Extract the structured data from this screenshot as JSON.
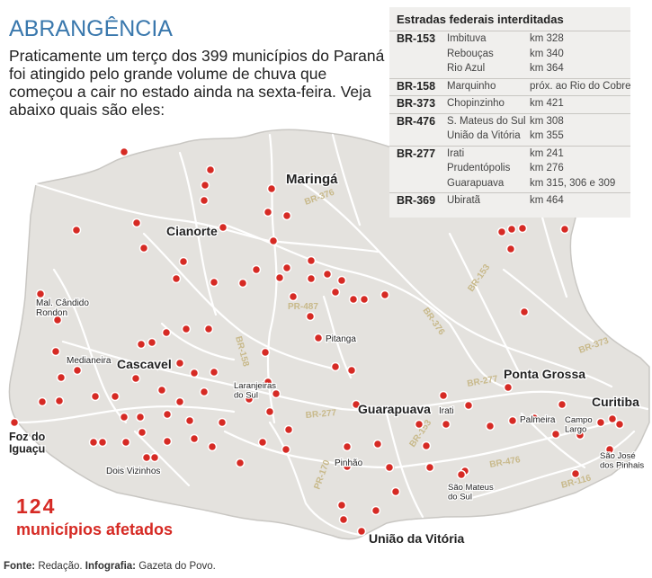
{
  "header": {
    "title": "ABRANGÊNCIA",
    "text": "Praticamente um terço dos 399 municípios do Paraná foi atingido pelo grande volume de chuva que começou a cair no estado ainda na sexta-feira. Veja abaixo quais são eles:"
  },
  "stat": {
    "number": "124",
    "label": "municípios afetados"
  },
  "footer": {
    "source_label": "Fonte:",
    "source": " Redação. ",
    "graphics_label": "Infografia:",
    "graphics": " Gazeta do Povo."
  },
  "roads_box": {
    "title": "Estradas federais interditadas",
    "groups": [
      {
        "code": "BR-153",
        "entries": [
          {
            "city": "Imbituva",
            "km": "km 328"
          },
          {
            "city": "Rebouças",
            "km": "km 340"
          },
          {
            "city": "Rio Azul",
            "km": "km 364"
          }
        ]
      },
      {
        "code": "BR-158",
        "entries": [
          {
            "city": "Marquinho",
            "km": "próx. ao Rio do Cobre"
          }
        ]
      },
      {
        "code": "BR-373",
        "entries": [
          {
            "city": "Chopinzinho",
            "km": "km 421"
          }
        ]
      },
      {
        "code": "BR-476",
        "entries": [
          {
            "city": "S. Mateus do Sul",
            "km": "km 308"
          },
          {
            "city": "União da Vitória",
            "km": "km 355"
          }
        ]
      },
      {
        "code": "BR-277",
        "entries": [
          {
            "city": "Irati",
            "km": "km 241"
          },
          {
            "city": "Prudentópolis",
            "km": "km 276"
          },
          {
            "city": "Guarapuava",
            "km": "km 315, 306 e 309"
          }
        ]
      },
      {
        "code": "BR-369",
        "entries": [
          {
            "city": "Ubiratã",
            "km": "km 464"
          }
        ]
      }
    ]
  },
  "map": {
    "colors": {
      "land": "#e4e2de",
      "roads": "#ffffff",
      "border": "#c9c7c3",
      "dot": "#d62a24",
      "dot_ring": "#ffffff",
      "road_label": "#c8b98a"
    },
    "major_cities": [
      {
        "id": "maringa",
        "name": "Maringá"
      },
      {
        "id": "cianorte",
        "name": "Cianorte"
      },
      {
        "id": "cascavel",
        "name": "Cascavel"
      },
      {
        "id": "guarapuava",
        "name": "Guarapuava"
      },
      {
        "id": "ponta-grossa",
        "name": "Ponta Grossa"
      },
      {
        "id": "curitiba",
        "name": "Curitiba"
      },
      {
        "id": "uniao-da-vitoria",
        "name": "União da Vitória"
      },
      {
        "id": "foz-do-iguacu",
        "name": "Foz do Iguaçu"
      }
    ],
    "minor_cities": [
      {
        "id": "mal-candido-rondon",
        "name": "Mal. Cândido Rondon"
      },
      {
        "id": "medianeira",
        "name": "Medianeira"
      },
      {
        "id": "dois-vizinhos",
        "name": "Dois Vizinhos"
      },
      {
        "id": "pitanga",
        "name": "Pitanga"
      },
      {
        "id": "laranjeiras-do-sul",
        "name": "Laranjeiras do Sul"
      },
      {
        "id": "irati",
        "name": "Irati"
      },
      {
        "id": "palmeira",
        "name": "Palmeira"
      },
      {
        "id": "campo-largo",
        "name": "Campo Largo"
      },
      {
        "id": "sao-jose-dos-pinhais",
        "name": "São José dos Pinhais"
      },
      {
        "id": "pinhao",
        "name": "Pinhão"
      },
      {
        "id": "sao-mateus-do-sul",
        "name": "São Mateus do Sul"
      }
    ],
    "road_labels": [
      {
        "id": "br-376-north",
        "text": "BR-376"
      },
      {
        "id": "br-153-north",
        "text": "BR-153"
      },
      {
        "id": "br-376-center",
        "text": "BR-376"
      },
      {
        "id": "pr-487",
        "text": "PR-487"
      },
      {
        "id": "br-158",
        "text": "BR-158"
      },
      {
        "id": "br-373",
        "text": "BR-373"
      },
      {
        "id": "br-277-east",
        "text": "BR-277"
      },
      {
        "id": "br-277-center",
        "text": "BR-277"
      },
      {
        "id": "br-153-south",
        "text": "BR-153"
      },
      {
        "id": "br-476",
        "text": "BR-476"
      },
      {
        "id": "pr-170",
        "text": "PR-170"
      },
      {
        "id": "br-116",
        "text": "BR-116"
      }
    ]
  }
}
